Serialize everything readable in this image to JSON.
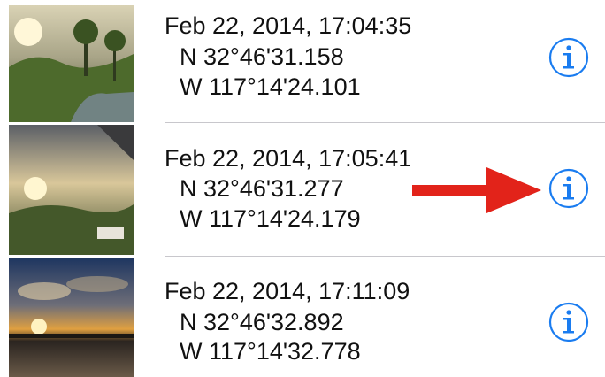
{
  "rows": [
    {
      "timestamp": "Feb 22, 2014, 17:04:35",
      "latitude": "N 32°46'31.158",
      "longitude": "W 117°14'24.101"
    },
    {
      "timestamp": "Feb 22, 2014, 17:05:41",
      "latitude": "N 32°46'31.277",
      "longitude": "W 117°14'24.179"
    },
    {
      "timestamp": "Feb 22, 2014, 17:11:09",
      "latitude": "N 32°46'32.892",
      "longitude": "W 117°14'32.778"
    }
  ]
}
